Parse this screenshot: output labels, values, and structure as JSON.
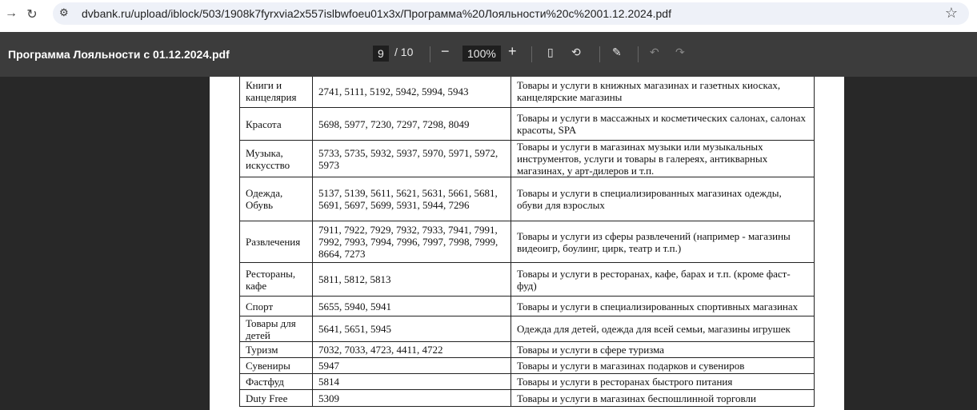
{
  "browser": {
    "url": "dvbank.ru/upload/iblock/503/1908k7fyrxvia2x557islbwfoeu01x3x/Программа%20Лояльности%20с%2001.12.2024.pdf"
  },
  "viewer": {
    "title": "Программа Лояльности с 01.12.2024.pdf",
    "page": "9",
    "total": "/ 10",
    "zoom": "100%"
  },
  "rows": [
    {
      "cat": "Книги и канцелярия",
      "codes": "2741, 5111, 5192, 5942, 5994, 5943",
      "desc": "Товары и услуги в книжных магазинах и газетных киосках, канцелярские магазины",
      "h": 41
    },
    {
      "cat": "Красота",
      "codes": "5698, 5977, 7230, 7297, 7298, 8049",
      "desc": "Товары и услуги в массажных и косметических салонах, салонах красоты, SPA",
      "h": 41
    },
    {
      "cat": "Музыка, искусство",
      "codes": "5733, 5735, 5932, 5937, 5970, 5971, 5972, 5973",
      "desc": "Товары и услуги в магазинах музыки или музыкальных инструментов, услуги и товары в галереях, антикварных магазинах, у арт-дилеров и т.п.",
      "h": 45
    },
    {
      "cat": "Одежда, Обувь",
      "codes": "5137, 5139, 5611, 5621, 5631, 5661, 5681, 5691, 5697, 5699, 5931, 5944, 7296",
      "desc": "Товары и услуги в специализированных магазинах одежды, обуви для взрослых",
      "h": 55
    },
    {
      "cat": "Развлечения",
      "codes": "7911, 7922, 7929, 7932, 7933, 7941, 7991, 7992, 7993, 7994, 7996, 7997, 7998, 7999, 8664, 7273",
      "desc": "Товары и услуги из сферы развлечений (например - магазины видеоигр, боулинг, цирк, театр и т.п.)",
      "h": 52
    },
    {
      "cat": "Рестораны, кафе",
      "codes": "5811, 5812, 5813",
      "desc": "Товары и услуги в ресторанах, кафе, барах и т.п. (кроме фаст-фуд)",
      "h": 42
    },
    {
      "cat": "Спорт",
      "codes": "5655, 5940, 5941",
      "desc": "Товары и услуги в специализированных спортивных магазинах",
      "h": 25
    },
    {
      "cat": "Товары для детей",
      "codes": "5641, 5651, 5945",
      "desc": "Одежда для детей, одежда для всей семьи, магазины игрушек",
      "h": 32
    },
    {
      "cat": "Туризм",
      "codes": "7032, 7033, 4723, 4411, 4722",
      "desc": "Товары и услуги в сфере туризма",
      "h": 20
    },
    {
      "cat": "Сувениры",
      "codes": "5947",
      "desc": "Товары и услуги в магазинах подарков и сувениров",
      "h": 20
    },
    {
      "cat": "Фастфуд",
      "codes": "5814",
      "desc": "Товары и услуги в ресторанах быстрого питания",
      "h": 20
    },
    {
      "cat": "Duty Free",
      "codes": "5309",
      "desc": "Товары и услуги в магазинах беспошлинной торговли",
      "h": 21
    }
  ]
}
